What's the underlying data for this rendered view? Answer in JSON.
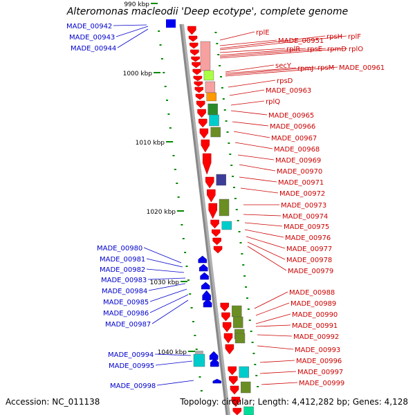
{
  "title": "Alteromonas macleodii 'Deep ecotype', complete genome",
  "accession_text": "Accession: NC_011138",
  "summary_text": "Topology: circular; Length: 4,412,282 bp; Genes: 4,128",
  "colors": {
    "left_label": "#0000cc",
    "right_label": "#cc0000",
    "backbone": "#888888",
    "tick": "#008800",
    "gene_red": "#ff0000",
    "gene_blue": "#0000ee"
  },
  "scale_ticks": [
    {
      "label": "990 kbp"
    },
    {
      "label": "1000 kbp"
    },
    {
      "label": "1010 kbp"
    },
    {
      "label": "1020 kbp"
    },
    {
      "label": "1030 kbp"
    },
    {
      "label": "1040 kbp"
    }
  ],
  "left_labels": [
    "MADE_00942",
    "MADE_00943",
    "MADE_00944",
    "MADE_00980",
    "MADE_00981",
    "MADE_00982",
    "MADE_00983",
    "MADE_00984",
    "MADE_00985",
    "MADE_00986",
    "MADE_00987",
    "MADE_00994",
    "MADE_00995",
    "MADE_00998"
  ],
  "right_labels": [
    "rplE",
    "MADE_00951",
    "rpsH",
    "rplF",
    "rplR",
    "rpsE",
    "rpmD",
    "rplO",
    "secY",
    "rpmJ",
    "rpsM",
    "MADE_00961",
    "rpsD",
    "MADE_00963",
    "rplQ",
    "MADE_00965",
    "MADE_00966",
    "MADE_00967",
    "MADE_00968",
    "MADE_00969",
    "MADE_00970",
    "MADE_00971",
    "MADE_00972",
    "MADE_00973",
    "MADE_00974",
    "MADE_00975",
    "MADE_00976",
    "MADE_00977",
    "MADE_00978",
    "MADE_00979",
    "MADE_00988",
    "MADE_00989",
    "MADE_00990",
    "MADE_00991",
    "MADE_00992",
    "MADE_00993",
    "MADE_00996",
    "MADE_00997",
    "MADE_00999"
  ]
}
